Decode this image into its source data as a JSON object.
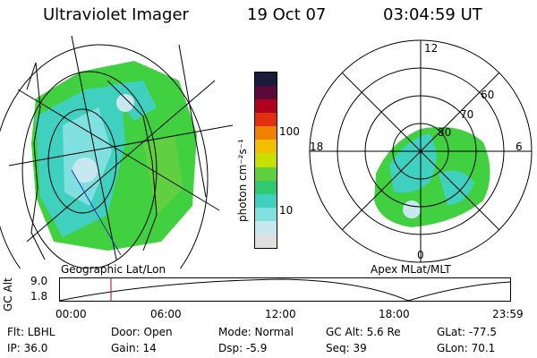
{
  "header": {
    "instrument": "Ultraviolet Imager",
    "date": "19 Oct 07",
    "time": "03:04:59 UT"
  },
  "geo_panel": {
    "label": "Geographic Lat/Lon"
  },
  "colorbar": {
    "unit_label": "photon cm⁻²s⁻¹",
    "ticks": [
      "100",
      "10"
    ],
    "colors": [
      "#1a1a3a",
      "#5a0a3a",
      "#b00020",
      "#e03010",
      "#f08000",
      "#f0c000",
      "#c8e000",
      "#60d040",
      "#30c870",
      "#40d0c0",
      "#80e0e0",
      "#c8e8f0",
      "#e0e0e0"
    ]
  },
  "apex_panel": {
    "label": "Apex MLat/MLT",
    "mlt_labels": [
      "12",
      "18",
      "6",
      "0"
    ],
    "lat_labels": [
      "60",
      "70",
      "80"
    ]
  },
  "altitude_plot": {
    "ylabel": "GC Alt",
    "y_ticks": [
      "9.0",
      "1.8"
    ],
    "x_ticks": [
      "00:00",
      "06:00",
      "12:00",
      "18:00",
      "23:59"
    ]
  },
  "info": {
    "flt": "Flt: LBHL",
    "door": "Door: Open",
    "mode": "Mode: Normal",
    "gc_alt": "GC Alt: 5.6 Re",
    "glat": "GLat: -77.5",
    "ip": "IP: 36.0",
    "gain": "Gain: 14",
    "dsp": "Dsp:   -5.9",
    "seq": "Seq: 39",
    "glon": "GLon:  70.1"
  },
  "colors": {
    "aurora_green": "#40d040",
    "aurora_cyan": "#40d0c0",
    "aurora_pale": "#c8e8f0",
    "marker_red": "#c00000",
    "track_blue": "#2030c0"
  }
}
